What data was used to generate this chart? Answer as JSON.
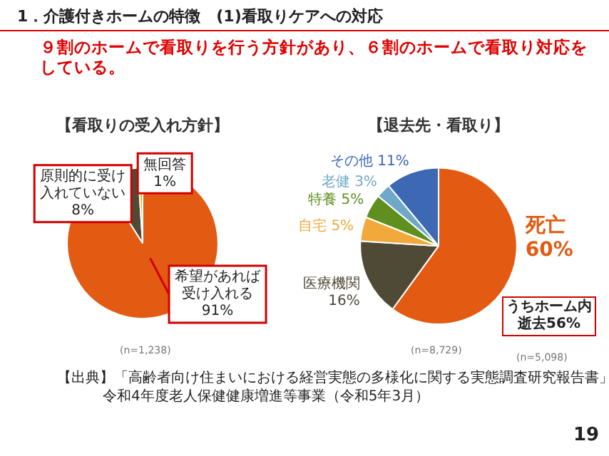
{
  "chart_data": [
    {
      "type": "pie",
      "title": "【看取りの受入れ方針】",
      "categories": [
        "希望があれば受け入れる",
        "原則的に受け入れていない",
        "無回答"
      ],
      "values": [
        91,
        8,
        1
      ],
      "value_labels": [
        "91%",
        "8%",
        "1%"
      ],
      "colors": [
        "#e35a12",
        "#4f4a36",
        "#f2b230"
      ],
      "legend": false,
      "annotations": [
        "1．介護付きホームの特徴　(1)看取りケアへの対応",
        "９割のホームで看取りを行う方針があり、６割のホームで看取り対応をしている。",
        "(n=1,238)"
      ]
    },
    {
      "type": "pie",
      "title": "【退去先・看取り】",
      "categories": [
        "死亡",
        "医療機関",
        "自宅",
        "特養",
        "老健",
        "その他"
      ],
      "values": [
        60,
        16,
        5,
        5,
        3,
        11
      ],
      "value_labels": [
        "60%",
        "16%",
        "5%",
        "5%",
        "3%",
        "11%"
      ],
      "colors": [
        "#e35a12",
        "#4f4a36",
        "#f2a93b",
        "#5f8f1f",
        "#6fa8c8",
        "#3c68b4"
      ],
      "legend": false,
      "annotations": [
        "(n=8,729)",
        "うちホーム内逝去56%",
        "(n=5,098)",
        "【出典】「高齢者向け住まいにおける経営実態の多様化に関する実態調査研究報告書」",
        "令和4年度老人保健健康増進等事業（令和5年3月）",
        "19"
      ]
    }
  ]
}
